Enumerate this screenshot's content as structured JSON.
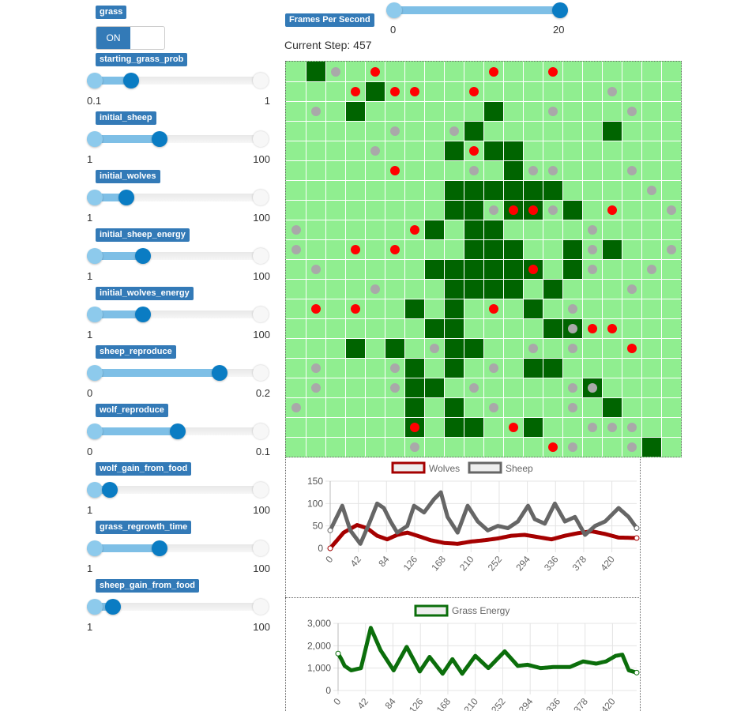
{
  "fps": {
    "label": "Frames Per Second",
    "min": "0",
    "max": "20",
    "value": 20,
    "range": [
      0,
      20
    ]
  },
  "current_step": {
    "label": "Current Step:",
    "value": "457"
  },
  "grass": {
    "label": "grass",
    "toggle": "ON"
  },
  "params": [
    {
      "id": "starting_grass_prob",
      "label": "starting_grass_prob",
      "min": "0.1",
      "max": "1",
      "fraction": 0.22
    },
    {
      "id": "initial_sheep",
      "label": "initial_sheep",
      "min": "1",
      "max": "100",
      "fraction": 0.39
    },
    {
      "id": "initial_wolves",
      "label": "initial_wolves",
      "min": "1",
      "max": "100",
      "fraction": 0.19
    },
    {
      "id": "initial_sheep_energy",
      "label": "initial_sheep_energy",
      "min": "1",
      "max": "100",
      "fraction": 0.29
    },
    {
      "id": "initial_wolves_energy",
      "label": "initial_wolves_energy",
      "min": "1",
      "max": "100",
      "fraction": 0.29
    },
    {
      "id": "sheep_reproduce",
      "label": "sheep_reproduce",
      "min": "0",
      "max": "0.2",
      "fraction": 0.75
    },
    {
      "id": "wolf_reproduce",
      "label": "wolf_reproduce",
      "min": "0",
      "max": "0.1",
      "fraction": 0.5
    },
    {
      "id": "wolf_gain_from_food",
      "label": "wolf_gain_from_food",
      "min": "1",
      "max": "100",
      "fraction": 0.09
    },
    {
      "id": "grass_regrowth_time",
      "label": "grass_regrowth_time",
      "min": "1",
      "max": "100",
      "fraction": 0.39
    },
    {
      "id": "sheep_gain_from_food",
      "label": "sheep_gain_from_food",
      "min": "1",
      "max": "100",
      "fraction": 0.11
    }
  ],
  "colors": {
    "grass_light": "#90ee90",
    "grass_dark": "#006400",
    "wolf": "#ff0000",
    "sheep": "#a9a9a9",
    "wolves_line": "#a50000",
    "sheep_line": "#666666",
    "grass_line": "#0b6e0b",
    "label_bg": "#337ab7"
  },
  "grid": {
    "cols": 20,
    "rows": 20,
    "patches": [
      [
        1,
        0
      ],
      [
        4,
        1
      ],
      [
        3,
        2
      ],
      [
        10,
        2
      ],
      [
        9,
        3
      ],
      [
        16,
        3
      ],
      [
        8,
        4
      ],
      [
        10,
        4
      ],
      [
        11,
        4
      ],
      [
        11,
        5
      ],
      [
        8,
        6
      ],
      [
        9,
        6
      ],
      [
        10,
        6
      ],
      [
        11,
        6
      ],
      [
        12,
        6
      ],
      [
        13,
        6
      ],
      [
        8,
        7
      ],
      [
        9,
        7
      ],
      [
        11,
        7
      ],
      [
        12,
        7
      ],
      [
        14,
        7
      ],
      [
        7,
        8
      ],
      [
        9,
        8
      ],
      [
        10,
        8
      ],
      [
        9,
        9
      ],
      [
        10,
        9
      ],
      [
        11,
        9
      ],
      [
        14,
        9
      ],
      [
        16,
        9
      ],
      [
        7,
        10
      ],
      [
        8,
        10
      ],
      [
        9,
        10
      ],
      [
        10,
        10
      ],
      [
        11,
        10
      ],
      [
        12,
        10
      ],
      [
        14,
        10
      ],
      [
        8,
        11
      ],
      [
        9,
        11
      ],
      [
        10,
        11
      ],
      [
        11,
        11
      ],
      [
        13,
        11
      ],
      [
        6,
        12
      ],
      [
        8,
        12
      ],
      [
        12,
        12
      ],
      [
        7,
        13
      ],
      [
        8,
        13
      ],
      [
        13,
        13
      ],
      [
        14,
        13
      ],
      [
        3,
        14
      ],
      [
        5,
        14
      ],
      [
        8,
        14
      ],
      [
        9,
        14
      ],
      [
        6,
        15
      ],
      [
        8,
        15
      ],
      [
        12,
        15
      ],
      [
        13,
        15
      ],
      [
        6,
        16
      ],
      [
        7,
        16
      ],
      [
        15,
        16
      ],
      [
        6,
        17
      ],
      [
        8,
        17
      ],
      [
        16,
        17
      ],
      [
        6,
        18
      ],
      [
        8,
        18
      ],
      [
        9,
        18
      ],
      [
        12,
        18
      ],
      [
        18,
        19
      ]
    ],
    "wolves": [
      [
        4,
        0
      ],
      [
        10,
        0
      ],
      [
        13,
        0
      ],
      [
        3,
        1
      ],
      [
        5,
        1
      ],
      [
        6,
        1
      ],
      [
        9,
        1
      ],
      [
        9,
        4
      ],
      [
        5,
        5
      ],
      [
        11,
        7
      ],
      [
        12,
        7
      ],
      [
        16,
        7
      ],
      [
        6,
        8
      ],
      [
        3,
        9
      ],
      [
        5,
        9
      ],
      [
        12,
        10
      ],
      [
        1,
        12
      ],
      [
        3,
        12
      ],
      [
        10,
        12
      ],
      [
        15,
        13
      ],
      [
        16,
        13
      ],
      [
        17,
        14
      ],
      [
        6,
        18
      ],
      [
        11,
        18
      ],
      [
        13,
        19
      ]
    ],
    "sheep": [
      [
        2,
        0
      ],
      [
        16,
        1
      ],
      [
        1,
        2
      ],
      [
        13,
        2
      ],
      [
        17,
        2
      ],
      [
        5,
        3
      ],
      [
        8,
        3
      ],
      [
        4,
        4
      ],
      [
        9,
        5
      ],
      [
        12,
        5
      ],
      [
        13,
        5
      ],
      [
        17,
        5
      ],
      [
        18,
        6
      ],
      [
        10,
        7
      ],
      [
        13,
        7
      ],
      [
        19,
        7
      ],
      [
        0,
        8
      ],
      [
        15,
        8
      ],
      [
        0,
        9
      ],
      [
        15,
        9
      ],
      [
        19,
        9
      ],
      [
        1,
        10
      ],
      [
        15,
        10
      ],
      [
        18,
        10
      ],
      [
        4,
        11
      ],
      [
        17,
        11
      ],
      [
        14,
        12
      ],
      [
        14,
        13
      ],
      [
        7,
        14
      ],
      [
        12,
        14
      ],
      [
        14,
        14
      ],
      [
        1,
        15
      ],
      [
        5,
        15
      ],
      [
        10,
        15
      ],
      [
        1,
        16
      ],
      [
        5,
        16
      ],
      [
        9,
        16
      ],
      [
        14,
        16
      ],
      [
        15,
        16
      ],
      [
        0,
        17
      ],
      [
        10,
        17
      ],
      [
        14,
        17
      ],
      [
        15,
        18
      ],
      [
        16,
        18
      ],
      [
        17,
        18
      ],
      [
        6,
        19
      ],
      [
        14,
        19
      ],
      [
        17,
        19
      ]
    ]
  },
  "chart_data": [
    {
      "type": "line",
      "title": "",
      "legend": "top-center",
      "xlim": [
        0,
        457
      ],
      "ylim": [
        0,
        150
      ],
      "x_ticks": [
        "0",
        "42",
        "84",
        "126",
        "168",
        "210",
        "252",
        "294",
        "336",
        "378",
        "420"
      ],
      "y_ticks": [
        "0",
        "50",
        "100",
        "150"
      ],
      "series": [
        {
          "name": "Wolves",
          "x": [
            0,
            20,
            40,
            55,
            70,
            85,
            100,
            115,
            130,
            150,
            170,
            190,
            210,
            230,
            250,
            270,
            290,
            310,
            330,
            350,
            370,
            390,
            410,
            430,
            457
          ],
          "y": [
            0,
            35,
            52,
            45,
            28,
            20,
            30,
            35,
            28,
            18,
            12,
            10,
            15,
            18,
            22,
            28,
            30,
            25,
            20,
            28,
            34,
            38,
            32,
            24,
            23
          ]
        },
        {
          "name": "Sheep",
          "x": [
            0,
            18,
            30,
            45,
            58,
            70,
            80,
            90,
            100,
            115,
            125,
            140,
            155,
            165,
            175,
            190,
            205,
            220,
            235,
            250,
            265,
            280,
            295,
            305,
            320,
            335,
            350,
            365,
            380,
            395,
            410,
            430,
            445,
            457
          ],
          "y": [
            40,
            95,
            40,
            10,
            55,
            100,
            90,
            60,
            35,
            50,
            95,
            80,
            110,
            125,
            70,
            35,
            95,
            60,
            40,
            50,
            45,
            60,
            95,
            65,
            55,
            100,
            60,
            70,
            30,
            50,
            60,
            90,
            70,
            45
          ]
        }
      ]
    },
    {
      "type": "line",
      "title": "",
      "legend": "top-center",
      "xlim": [
        0,
        457
      ],
      "ylim": [
        0,
        3000
      ],
      "x_ticks": [
        "0",
        "42",
        "84",
        "126",
        "168",
        "210",
        "252",
        "294",
        "336",
        "378",
        "420"
      ],
      "y_ticks": [
        "0",
        "1,000",
        "2,000",
        "3,000"
      ],
      "series": [
        {
          "name": "Grass Energy",
          "x": [
            0,
            5,
            10,
            20,
            35,
            50,
            65,
            85,
            105,
            125,
            140,
            160,
            175,
            190,
            210,
            230,
            255,
            275,
            290,
            310,
            330,
            355,
            375,
            395,
            410,
            425,
            435,
            445,
            457
          ],
          "y": [
            1650,
            1400,
            1100,
            900,
            1000,
            2800,
            1800,
            900,
            1950,
            850,
            1500,
            750,
            1400,
            750,
            1550,
            1000,
            1750,
            1100,
            1150,
            1000,
            1050,
            1050,
            1300,
            1200,
            1300,
            1550,
            1600,
            900,
            800
          ]
        }
      ]
    }
  ]
}
